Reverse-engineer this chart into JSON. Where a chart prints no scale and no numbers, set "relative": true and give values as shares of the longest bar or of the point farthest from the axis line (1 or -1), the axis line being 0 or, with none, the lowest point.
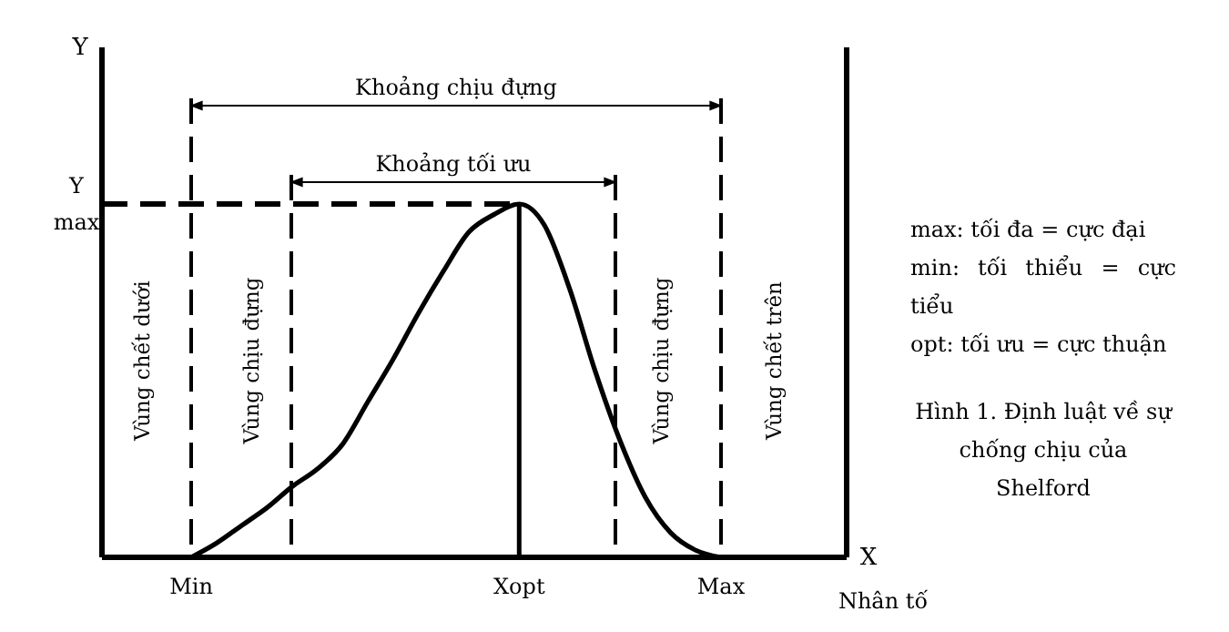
{
  "chart_data": {
    "type": "line",
    "relative": true,
    "xlabel": "X",
    "categories": [
      "Min",
      null,
      null,
      null,
      null,
      null,
      null,
      null,
      null,
      null,
      null,
      null,
      null,
      "Xopt",
      null,
      null,
      null,
      null,
      null,
      null,
      null,
      "Max"
    ],
    "series": [
      {
        "color": "#000000",
        "values": [
          0,
          0.04,
          0.09,
          0.14,
          0.2,
          0.25,
          0.32,
          0.44,
          0.56,
          0.69,
          0.81,
          0.92,
          0.97,
          1,
          0.94,
          0.76,
          0.53,
          0.33,
          0.17,
          0.07,
          0.02,
          0
        ]
      }
    ],
    "marker": "none",
    "line_style": "solid",
    "grid": "x",
    "ref_lines": [
      {
        "axis": "y",
        "value": 1,
        "label": "Y max",
        "line_style": "dashed",
        "color": "#000000"
      },
      {
        "axis": "x",
        "value": "Xopt",
        "line_style": "solid",
        "color": "#000000"
      }
    ],
    "annotations": [
      "Vùng chết dưới",
      "Vùng chịu đựng",
      "Vùng chịu đựng",
      "Vùng chết trên",
      "Khoảng chịu đựng",
      "Khoảng tối ưu",
      "Nhân tố",
      "Y",
      "max: tối đa = cực đại",
      "min: tối thiểu = cực tiểu",
      "opt: tối ưu = cực thuận",
      "Hình 1. Định luật về sự chống chịu của Shelford"
    ]
  }
}
